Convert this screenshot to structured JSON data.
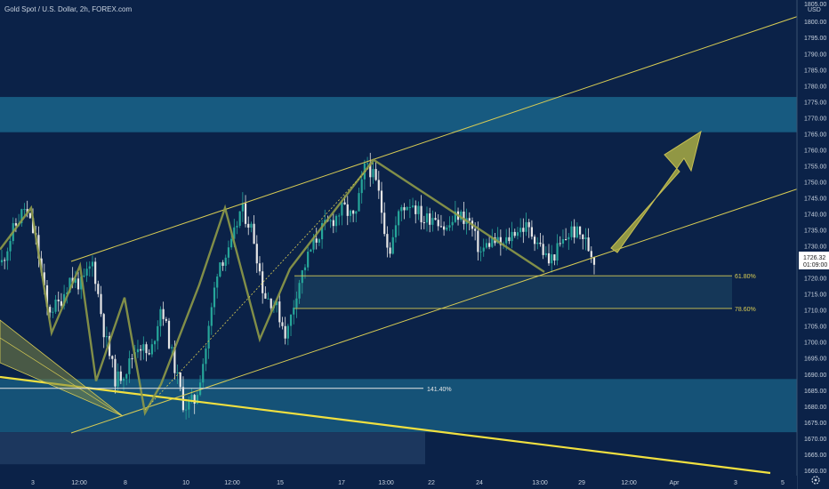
{
  "header": {
    "symbol_title": "Gold Spot / U.S. Dollar, 2h, FOREX.com"
  },
  "colors": {
    "background": "#0b2248",
    "zone": "#175a80",
    "zone_dark": "#1e3a60",
    "up_candle": "#26a69a",
    "down_candle": "#e6e6e6",
    "channel": "#d8cc54",
    "trend": "#f0e040",
    "pattern": "#8e9a48",
    "arrow": "#a9ac44",
    "price_label_bg": "#ffffff"
  },
  "icons": {
    "settings": "gear-icon"
  },
  "chart_data": {
    "type": "candlestick",
    "title": "Gold Spot / U.S. Dollar, 2h, FOREX.com",
    "currency": "USD",
    "ylim": [
      1660,
      1805
    ],
    "y_ticks": [
      1660,
      1665,
      1670,
      1675,
      1680,
      1685,
      1690,
      1695,
      1700,
      1705,
      1710,
      1715,
      1720,
      1725,
      1730,
      1735,
      1740,
      1745,
      1750,
      1755,
      1760,
      1765,
      1770,
      1775,
      1780,
      1785,
      1790,
      1795,
      1800
    ],
    "top_tick_partial": "1805.00",
    "x_ticks": [
      "3",
      "12:00",
      "8",
      "10",
      "12:00",
      "15",
      "17",
      "13:00",
      "22",
      "24",
      "13:00",
      "29",
      "12:00",
      "Apr",
      "3",
      "5"
    ],
    "last_price": "1726.32",
    "countdown": "01:09:00",
    "fib_levels": [
      {
        "label": "61.80%",
        "price": 1720.8
      },
      {
        "label": "78.60%",
        "price": 1710.6
      },
      {
        "label": "141.40%",
        "price": 1685.7
      }
    ],
    "zones": [
      {
        "from": 1765.6,
        "to": 1776.6
      },
      {
        "from": 1672.0,
        "to": 1688.6
      },
      {
        "from": 1662.0,
        "to": 1672.0
      }
    ],
    "pattern_points": [
      1729,
      1742,
      1703,
      1724,
      1688,
      1714,
      1678,
      1687,
      1718,
      1742,
      1701,
      1723,
      1757,
      1722
    ],
    "price_series": [
      1725,
      1735,
      1742,
      1732,
      1710,
      1712,
      1720,
      1718,
      1725,
      1703,
      1688,
      1692,
      1700,
      1695,
      1712,
      1695,
      1680,
      1682,
      1700,
      1725,
      1728,
      1742,
      1735,
      1715,
      1712,
      1702,
      1718,
      1728,
      1735,
      1738,
      1742,
      1738,
      1757,
      1748,
      1728,
      1742,
      1744,
      1738,
      1740,
      1735,
      1740,
      1738,
      1728,
      1732,
      1730,
      1735,
      1736,
      1732,
      1725,
      1730,
      1735,
      1733,
      1726
    ]
  }
}
